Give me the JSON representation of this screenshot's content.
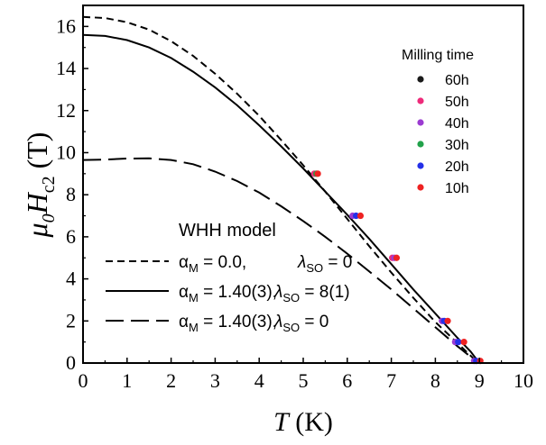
{
  "chart_data": {
    "type": "scatter",
    "xlabel": {
      "main": "T",
      "unit": " (K)"
    },
    "ylabel": {
      "main": "μ",
      "sub0": "0",
      "main2": "H",
      "sub1": "c2",
      "unit": " (T)"
    },
    "xlim": [
      0,
      10
    ],
    "ylim": [
      0,
      17
    ],
    "xticks": [
      "0",
      "1",
      "2",
      "3",
      "4",
      "5",
      "6",
      "7",
      "8",
      "9",
      "10"
    ],
    "yticks": [
      "0",
      "2",
      "4",
      "6",
      "8",
      "10",
      "12",
      "14",
      "16"
    ],
    "grid": false,
    "legend_points": {
      "title": "Milling time",
      "placement": "top-right",
      "entries": [
        {
          "label": "60h",
          "color": "#1a1a1a"
        },
        {
          "label": "50h",
          "color": "#ee2b7a"
        },
        {
          "label": "40h",
          "color": "#9b3bd1"
        },
        {
          "label": "30h",
          "color": "#22a24a"
        },
        {
          "label": "20h",
          "color": "#2430e8"
        },
        {
          "label": "10h",
          "color": "#ee2222"
        }
      ]
    },
    "legend_lines": {
      "title": "WHH model",
      "placement": "bottom-left",
      "entries": [
        {
          "style": "short-dash",
          "alpha_sym": "α",
          "alpha_sub": "M",
          "alpha_val": " = 0.0,",
          "lambda_sym": "λ",
          "lambda_sub": "SO",
          "lambda_val": " = 0"
        },
        {
          "style": "solid",
          "alpha_sym": "α",
          "alpha_sub": "M",
          "alpha_val": " = 1.40(3),",
          "lambda_sym": "λ",
          "lambda_sub": "SO",
          "lambda_val": " = 8(1)"
        },
        {
          "style": "long-dash",
          "alpha_sym": "α",
          "alpha_sub": "M",
          "alpha_val": " = 1.40(3),",
          "lambda_sym": "λ",
          "lambda_sub": "SO",
          "lambda_val": " = 0"
        }
      ]
    },
    "curves": [
      {
        "style": "short-dash",
        "points": [
          [
            0,
            16.45
          ],
          [
            0.5,
            16.4
          ],
          [
            1,
            16.2
          ],
          [
            1.5,
            15.85
          ],
          [
            2,
            15.3
          ],
          [
            2.5,
            14.6
          ],
          [
            3,
            13.75
          ],
          [
            3.5,
            12.8
          ],
          [
            4,
            11.75
          ],
          [
            4.5,
            10.6
          ],
          [
            5,
            9.4
          ],
          [
            5.5,
            8.15
          ],
          [
            6,
            6.85
          ],
          [
            6.5,
            5.55
          ],
          [
            7,
            4.3
          ],
          [
            7.5,
            3.1
          ],
          [
            8,
            1.95
          ],
          [
            8.5,
            0.95
          ],
          [
            8.7,
            0.55
          ],
          [
            8.9,
            0.15
          ],
          [
            8.95,
            0
          ]
        ]
      },
      {
        "style": "solid",
        "points": [
          [
            0,
            15.6
          ],
          [
            0.5,
            15.55
          ],
          [
            1,
            15.35
          ],
          [
            1.5,
            15.0
          ],
          [
            2,
            14.5
          ],
          [
            2.5,
            13.85
          ],
          [
            3,
            13.1
          ],
          [
            3.5,
            12.25
          ],
          [
            4,
            11.3
          ],
          [
            4.5,
            10.3
          ],
          [
            5,
            9.25
          ],
          [
            5.5,
            8.15
          ],
          [
            6,
            7.05
          ],
          [
            6.5,
            5.9
          ],
          [
            7,
            4.7
          ],
          [
            7.5,
            3.5
          ],
          [
            8,
            2.35
          ],
          [
            8.5,
            1.2
          ],
          [
            8.8,
            0.55
          ],
          [
            9.0,
            0
          ]
        ]
      },
      {
        "style": "long-dash",
        "points": [
          [
            0,
            9.65
          ],
          [
            0.5,
            9.67
          ],
          [
            1,
            9.72
          ],
          [
            1.5,
            9.73
          ],
          [
            2,
            9.65
          ],
          [
            2.5,
            9.45
          ],
          [
            3,
            9.1
          ],
          [
            3.5,
            8.65
          ],
          [
            4,
            8.1
          ],
          [
            4.5,
            7.45
          ],
          [
            5,
            6.75
          ],
          [
            5.5,
            6.0
          ],
          [
            6,
            5.2
          ],
          [
            6.5,
            4.35
          ],
          [
            7,
            3.5
          ],
          [
            7.5,
            2.6
          ],
          [
            8,
            1.7
          ],
          [
            8.5,
            0.8
          ],
          [
            8.8,
            0.3
          ],
          [
            8.95,
            0
          ]
        ]
      }
    ],
    "points": [
      {
        "series": "50h",
        "x": 5.25,
        "y": 9.0
      },
      {
        "series": "30h",
        "x": 5.3,
        "y": 9.0
      },
      {
        "series": "10h",
        "x": 5.33,
        "y": 9.0
      },
      {
        "series": "40h",
        "x": 6.12,
        "y": 7.0
      },
      {
        "series": "20h",
        "x": 6.2,
        "y": 7.0
      },
      {
        "series": "10h",
        "x": 6.3,
        "y": 7.0
      },
      {
        "series": "50h",
        "x": 7.02,
        "y": 5.0
      },
      {
        "series": "40h",
        "x": 7.07,
        "y": 5.0
      },
      {
        "series": "10h",
        "x": 7.12,
        "y": 5.0
      },
      {
        "series": "40h",
        "x": 8.15,
        "y": 2.0
      },
      {
        "series": "20h",
        "x": 8.2,
        "y": 2.0
      },
      {
        "series": "10h",
        "x": 8.28,
        "y": 2.0
      },
      {
        "series": "40h",
        "x": 8.45,
        "y": 1.0
      },
      {
        "series": "20h",
        "x": 8.52,
        "y": 1.0
      },
      {
        "series": "10h",
        "x": 8.65,
        "y": 1.0
      },
      {
        "series": "40h",
        "x": 8.88,
        "y": 0.1
      },
      {
        "series": "20h",
        "x": 8.93,
        "y": 0.1
      },
      {
        "series": "10h",
        "x": 9.02,
        "y": 0.1
      }
    ]
  }
}
